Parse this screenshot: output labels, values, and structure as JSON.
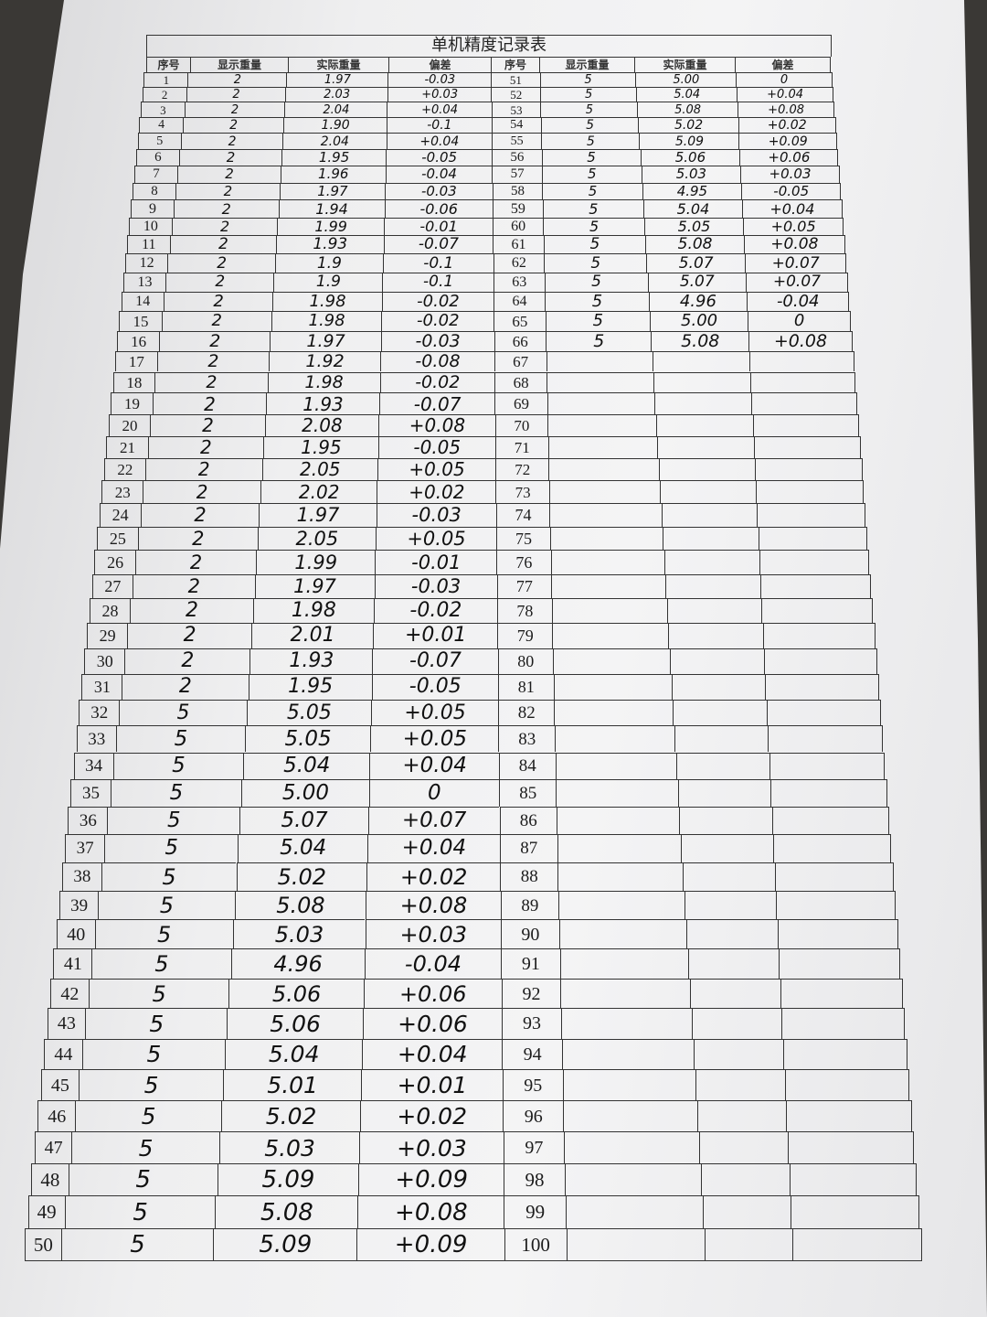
{
  "title": "单机精度记录表",
  "headers": [
    "序号",
    "显示重量",
    "实际重量",
    "偏差",
    "序号",
    "显示重量",
    "实际重量",
    "偏差"
  ],
  "left_rows": [
    {
      "no": "1",
      "display": "2",
      "actual": "1.97",
      "dev": "-0.03"
    },
    {
      "no": "2",
      "display": "2",
      "actual": "2.03",
      "dev": "+0.03"
    },
    {
      "no": "3",
      "display": "2",
      "actual": "2.04",
      "dev": "+0.04"
    },
    {
      "no": "4",
      "display": "2",
      "actual": "1.90",
      "dev": "-0.1"
    },
    {
      "no": "5",
      "display": "2",
      "actual": "2.04",
      "dev": "+0.04"
    },
    {
      "no": "6",
      "display": "2",
      "actual": "1.95",
      "dev": "-0.05"
    },
    {
      "no": "7",
      "display": "2",
      "actual": "1.96",
      "dev": "-0.04"
    },
    {
      "no": "8",
      "display": "2",
      "actual": "1.97",
      "dev": "-0.03"
    },
    {
      "no": "9",
      "display": "2",
      "actual": "1.94",
      "dev": "-0.06"
    },
    {
      "no": "10",
      "display": "2",
      "actual": "1.99",
      "dev": "-0.01"
    },
    {
      "no": "11",
      "display": "2",
      "actual": "1.93",
      "dev": "-0.07"
    },
    {
      "no": "12",
      "display": "2",
      "actual": "1.9",
      "dev": "-0.1"
    },
    {
      "no": "13",
      "display": "2",
      "actual": "1.9",
      "dev": "-0.1"
    },
    {
      "no": "14",
      "display": "2",
      "actual": "1.98",
      "dev": "-0.02"
    },
    {
      "no": "15",
      "display": "2",
      "actual": "1.98",
      "dev": "-0.02"
    },
    {
      "no": "16",
      "display": "2",
      "actual": "1.97",
      "dev": "-0.03"
    },
    {
      "no": "17",
      "display": "2",
      "actual": "1.92",
      "dev": "-0.08"
    },
    {
      "no": "18",
      "display": "2",
      "actual": "1.98",
      "dev": "-0.02"
    },
    {
      "no": "19",
      "display": "2",
      "actual": "1.93",
      "dev": "-0.07"
    },
    {
      "no": "20",
      "display": "2",
      "actual": "2.08",
      "dev": "+0.08"
    },
    {
      "no": "21",
      "display": "2",
      "actual": "1.95",
      "dev": "-0.05"
    },
    {
      "no": "22",
      "display": "2",
      "actual": "2.05",
      "dev": "+0.05"
    },
    {
      "no": "23",
      "display": "2",
      "actual": "2.02",
      "dev": "+0.02"
    },
    {
      "no": "24",
      "display": "2",
      "actual": "1.97",
      "dev": "-0.03"
    },
    {
      "no": "25",
      "display": "2",
      "actual": "2.05",
      "dev": "+0.05"
    },
    {
      "no": "26",
      "display": "2",
      "actual": "1.99",
      "dev": "-0.01"
    },
    {
      "no": "27",
      "display": "2",
      "actual": "1.97",
      "dev": "-0.03"
    },
    {
      "no": "28",
      "display": "2",
      "actual": "1.98",
      "dev": "-0.02"
    },
    {
      "no": "29",
      "display": "2",
      "actual": "2.01",
      "dev": "+0.01"
    },
    {
      "no": "30",
      "display": "2",
      "actual": "1.93",
      "dev": "-0.07"
    },
    {
      "no": "31",
      "display": "2",
      "actual": "1.95",
      "dev": "-0.05"
    },
    {
      "no": "32",
      "display": "5",
      "actual": "5.05",
      "dev": "+0.05"
    },
    {
      "no": "33",
      "display": "5",
      "actual": "5.05",
      "dev": "+0.05"
    },
    {
      "no": "34",
      "display": "5",
      "actual": "5.04",
      "dev": "+0.04"
    },
    {
      "no": "35",
      "display": "5",
      "actual": "5.00",
      "dev": "0"
    },
    {
      "no": "36",
      "display": "5",
      "actual": "5.07",
      "dev": "+0.07"
    },
    {
      "no": "37",
      "display": "5",
      "actual": "5.04",
      "dev": "+0.04"
    },
    {
      "no": "38",
      "display": "5",
      "actual": "5.02",
      "dev": "+0.02"
    },
    {
      "no": "39",
      "display": "5",
      "actual": "5.08",
      "dev": "+0.08"
    },
    {
      "no": "40",
      "display": "5",
      "actual": "5.03",
      "dev": "+0.03"
    },
    {
      "no": "41",
      "display": "5",
      "actual": "4.96",
      "dev": "-0.04"
    },
    {
      "no": "42",
      "display": "5",
      "actual": "5.06",
      "dev": "+0.06"
    },
    {
      "no": "43",
      "display": "5",
      "actual": "5.06",
      "dev": "+0.06"
    },
    {
      "no": "44",
      "display": "5",
      "actual": "5.04",
      "dev": "+0.04"
    },
    {
      "no": "45",
      "display": "5",
      "actual": "5.01",
      "dev": "+0.01"
    },
    {
      "no": "46",
      "display": "5",
      "actual": "5.02",
      "dev": "+0.02"
    },
    {
      "no": "47",
      "display": "5",
      "actual": "5.03",
      "dev": "+0.03"
    },
    {
      "no": "48",
      "display": "5",
      "actual": "5.09",
      "dev": "+0.09"
    },
    {
      "no": "49",
      "display": "5",
      "actual": "5.08",
      "dev": "+0.08"
    },
    {
      "no": "50",
      "display": "5",
      "actual": "5.09",
      "dev": "+0.09"
    }
  ],
  "right_rows": [
    {
      "no": "51",
      "display": "5",
      "actual": "5.00",
      "dev": "0"
    },
    {
      "no": "52",
      "display": "5",
      "actual": "5.04",
      "dev": "+0.04"
    },
    {
      "no": "53",
      "display": "5",
      "actual": "5.08",
      "dev": "+0.08"
    },
    {
      "no": "54",
      "display": "5",
      "actual": "5.02",
      "dev": "+0.02"
    },
    {
      "no": "55",
      "display": "5",
      "actual": "5.09",
      "dev": "+0.09"
    },
    {
      "no": "56",
      "display": "5",
      "actual": "5.06",
      "dev": "+0.06"
    },
    {
      "no": "57",
      "display": "5",
      "actual": "5.03",
      "dev": "+0.03"
    },
    {
      "no": "58",
      "display": "5",
      "actual": "4.95",
      "dev": "-0.05"
    },
    {
      "no": "59",
      "display": "5",
      "actual": "5.04",
      "dev": "+0.04"
    },
    {
      "no": "60",
      "display": "5",
      "actual": "5.05",
      "dev": "+0.05"
    },
    {
      "no": "61",
      "display": "5",
      "actual": "5.08",
      "dev": "+0.08"
    },
    {
      "no": "62",
      "display": "5",
      "actual": "5.07",
      "dev": "+0.07"
    },
    {
      "no": "63",
      "display": "5",
      "actual": "5.07",
      "dev": "+0.07"
    },
    {
      "no": "64",
      "display": "5",
      "actual": "4.96",
      "dev": "-0.04"
    },
    {
      "no": "65",
      "display": "5",
      "actual": "5.00",
      "dev": "0"
    },
    {
      "no": "66",
      "display": "5",
      "actual": "5.08",
      "dev": "+0.08"
    },
    {
      "no": "67",
      "display": "",
      "actual": "",
      "dev": ""
    },
    {
      "no": "68",
      "display": "",
      "actual": "",
      "dev": ""
    },
    {
      "no": "69",
      "display": "",
      "actual": "",
      "dev": ""
    },
    {
      "no": "70",
      "display": "",
      "actual": "",
      "dev": ""
    },
    {
      "no": "71",
      "display": "",
      "actual": "",
      "dev": ""
    },
    {
      "no": "72",
      "display": "",
      "actual": "",
      "dev": ""
    },
    {
      "no": "73",
      "display": "",
      "actual": "",
      "dev": ""
    },
    {
      "no": "74",
      "display": "",
      "actual": "",
      "dev": ""
    },
    {
      "no": "75",
      "display": "",
      "actual": "",
      "dev": ""
    },
    {
      "no": "76",
      "display": "",
      "actual": "",
      "dev": ""
    },
    {
      "no": "77",
      "display": "",
      "actual": "",
      "dev": ""
    },
    {
      "no": "78",
      "display": "",
      "actual": "",
      "dev": ""
    },
    {
      "no": "79",
      "display": "",
      "actual": "",
      "dev": ""
    },
    {
      "no": "80",
      "display": "",
      "actual": "",
      "dev": ""
    },
    {
      "no": "81",
      "display": "",
      "actual": "",
      "dev": ""
    },
    {
      "no": "82",
      "display": "",
      "actual": "",
      "dev": ""
    },
    {
      "no": "83",
      "display": "",
      "actual": "",
      "dev": ""
    },
    {
      "no": "84",
      "display": "",
      "actual": "",
      "dev": ""
    },
    {
      "no": "85",
      "display": "",
      "actual": "",
      "dev": ""
    },
    {
      "no": "86",
      "display": "",
      "actual": "",
      "dev": ""
    },
    {
      "no": "87",
      "display": "",
      "actual": "",
      "dev": ""
    },
    {
      "no": "88",
      "display": "",
      "actual": "",
      "dev": ""
    },
    {
      "no": "89",
      "display": "",
      "actual": "",
      "dev": ""
    },
    {
      "no": "90",
      "display": "",
      "actual": "",
      "dev": ""
    },
    {
      "no": "91",
      "display": "",
      "actual": "",
      "dev": ""
    },
    {
      "no": "92",
      "display": "",
      "actual": "",
      "dev": ""
    },
    {
      "no": "93",
      "display": "",
      "actual": "",
      "dev": ""
    },
    {
      "no": "94",
      "display": "",
      "actual": "",
      "dev": ""
    },
    {
      "no": "95",
      "display": "",
      "actual": "",
      "dev": ""
    },
    {
      "no": "96",
      "display": "",
      "actual": "",
      "dev": ""
    },
    {
      "no": "97",
      "display": "",
      "actual": "",
      "dev": ""
    },
    {
      "no": "98",
      "display": "",
      "actual": "",
      "dev": ""
    },
    {
      "no": "99",
      "display": "",
      "actual": "",
      "dev": ""
    },
    {
      "no": "100",
      "display": "",
      "actual": "",
      "dev": ""
    }
  ]
}
